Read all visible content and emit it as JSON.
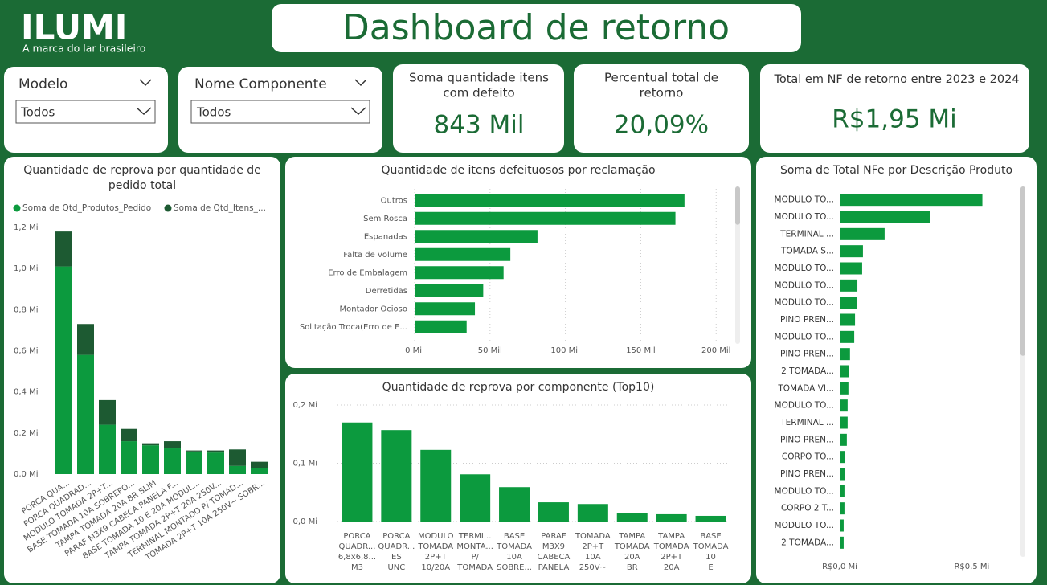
{
  "header": {
    "logo": "ILUMI",
    "tagline": "A marca do lar brasileiro",
    "title": "Dashboard de retorno"
  },
  "filters": [
    {
      "label": "Modelo",
      "value": "Todos"
    },
    {
      "label": "Nome Componente",
      "value": "Todos"
    }
  ],
  "kpis": [
    {
      "title": [
        "Soma quantidade itens",
        "com defeito"
      ],
      "value": "843 Mil"
    },
    {
      "title": [
        "Percentual total de",
        "retorno"
      ],
      "value": "20,09%"
    },
    {
      "title": [
        "Total em NF de retorno entre 2023 e 2024"
      ],
      "value": "R$1,95 Mi"
    }
  ],
  "chart_data": [
    {
      "type": "bar",
      "orientation": "vertical",
      "stacked": true,
      "grid": false,
      "legend": "top",
      "title": [
        "Quantidade de reprova por quantidade de",
        "pedido total"
      ],
      "categories": [
        "PORCA QUA...",
        "PORCA QUADRAD...",
        "MODULO TOMADA 2P+T...",
        "BASE TOMADA 10A SOBREPO...",
        "TAMPA TOMADA 20A BR SLIM",
        "PARAF M3X9 CABECA PANELA F...",
        "BASE TOMADA 10 E 20A MODUL...",
        "TAMPA TOMADA 2P+T 20A 250V...",
        "TERMINAL MONTADO P/ TOMAD...",
        "TOMADA 2P+T 10A 250V~ SOBR..."
      ],
      "series": [
        {
          "name": "Soma de Qtd_Produtos_Pedido",
          "color": "#0c9a3e",
          "values": [
            1.01,
            0.58,
            0.24,
            0.16,
            0.14,
            0.125,
            0.11,
            0.105,
            0.04,
            0.03
          ]
        },
        {
          "name": "Soma de Qtd_Itens_...",
          "color": "#1d5a32",
          "values": [
            0.17,
            0.15,
            0.12,
            0.06,
            0.01,
            0.035,
            0.005,
            0.01,
            0.08,
            0.03
          ]
        }
      ],
      "ylim": [
        0,
        1.2
      ],
      "yticks": [
        {
          "value": 0,
          "label": "0,0 Mi"
        },
        {
          "value": 0.2,
          "label": "0,2 Mi"
        },
        {
          "value": 0.4,
          "label": "0,4 Mi"
        },
        {
          "value": 0.6,
          "label": "0,6 Mi"
        },
        {
          "value": 0.8,
          "label": "0,8 Mi"
        },
        {
          "value": 1.0,
          "label": "1,0 Mi"
        },
        {
          "value": 1.2,
          "label": "1,2 Mi"
        }
      ]
    },
    {
      "type": "bar",
      "orientation": "horizontal",
      "grid": true,
      "color": "#0c9a3e",
      "title": [
        "Quantidade de itens defeituosos por reclamação"
      ],
      "categories": [
        "Outros",
        "Sem Rosca",
        "Espanadas",
        "Falta de volume",
        "Erro de Embalagem",
        "Derretidas",
        "Montador Ocioso",
        "Solitação Troca(Erro de E..."
      ],
      "values": [
        179,
        173,
        81.5,
        63.5,
        59,
        45.5,
        40,
        34.5
      ],
      "xlim": [
        0,
        210
      ],
      "xticks": [
        {
          "value": 0,
          "label": "0 Mil"
        },
        {
          "value": 50,
          "label": "50 Mil"
        },
        {
          "value": 100,
          "label": "100 Mil"
        },
        {
          "value": 150,
          "label": "150 Mil"
        },
        {
          "value": 200,
          "label": "200 Mil"
        }
      ]
    },
    {
      "type": "bar",
      "orientation": "vertical",
      "grid": true,
      "color": "#0c9a3e",
      "title": [
        "Quantidade de reprova por componente (Top10)"
      ],
      "categories": [
        "PORCA QUADR... 6,8x6,8... M3",
        "PORCA QUADR... ES UNC M3",
        "MODULO TOMADA 2P+T 10/20A",
        "TERMI... MONTA... P/ TOMADA",
        "BASE TOMADA 10A SOBRE...",
        "PARAF M3X9 CABECA PANELA",
        "TOMADA 2P+T 10A 250V~",
        "TAMPA TOMADA 20A BR SLIM",
        "TAMPA TOMADA 2P+T 20A",
        "BASE TOMADA 10 E 20A"
      ],
      "values": [
        0.17,
        0.157,
        0.123,
        0.081,
        0.059,
        0.033,
        0.03,
        0.015,
        0.0125,
        0.0097
      ],
      "ylim": [
        0,
        0.2
      ],
      "yticks": [
        {
          "value": 0,
          "label": "0,0 Mi"
        },
        {
          "value": 0.1,
          "label": "0,1 Mi"
        },
        {
          "value": 0.2,
          "label": "0,2 Mi"
        }
      ]
    },
    {
      "type": "bar",
      "orientation": "horizontal",
      "grid": false,
      "color": "#0c9a3e",
      "title": [
        "Soma de Total NFe por Descrição Produto"
      ],
      "categories": [
        "MODULO TO...",
        "MODULO TO...",
        "TERMINAL ...",
        "TOMADA S...",
        "MODULO TO...",
        "MODULO TO...",
        "MODULO TO...",
        "PINO PREN...",
        "MODULO TO...",
        "PINO PREN...",
        "2 TOMADA...",
        "TOMADA VI...",
        "MODULO TO...",
        "TERMINAL ...",
        "PINO PREN...",
        "CORPO TO...",
        "PINO PREN...",
        "MODULO TO...",
        "CORPO 2 T...",
        "MODULO TO...",
        "2 TOMADA..."
      ],
      "values": [
        0.54,
        0.342,
        0.17,
        0.088,
        0.085,
        0.067,
        0.064,
        0.058,
        0.055,
        0.039,
        0.036,
        0.033,
        0.03,
        0.03,
        0.027,
        0.021,
        0.021,
        0.018,
        0.018,
        0.015,
        0.015
      ],
      "xlim": [
        0,
        0.66
      ],
      "xticks": [
        {
          "value": 0,
          "label": "R$0,0 Mi"
        },
        {
          "value": 0.5,
          "label": "R$0,5 Mi"
        }
      ]
    }
  ]
}
